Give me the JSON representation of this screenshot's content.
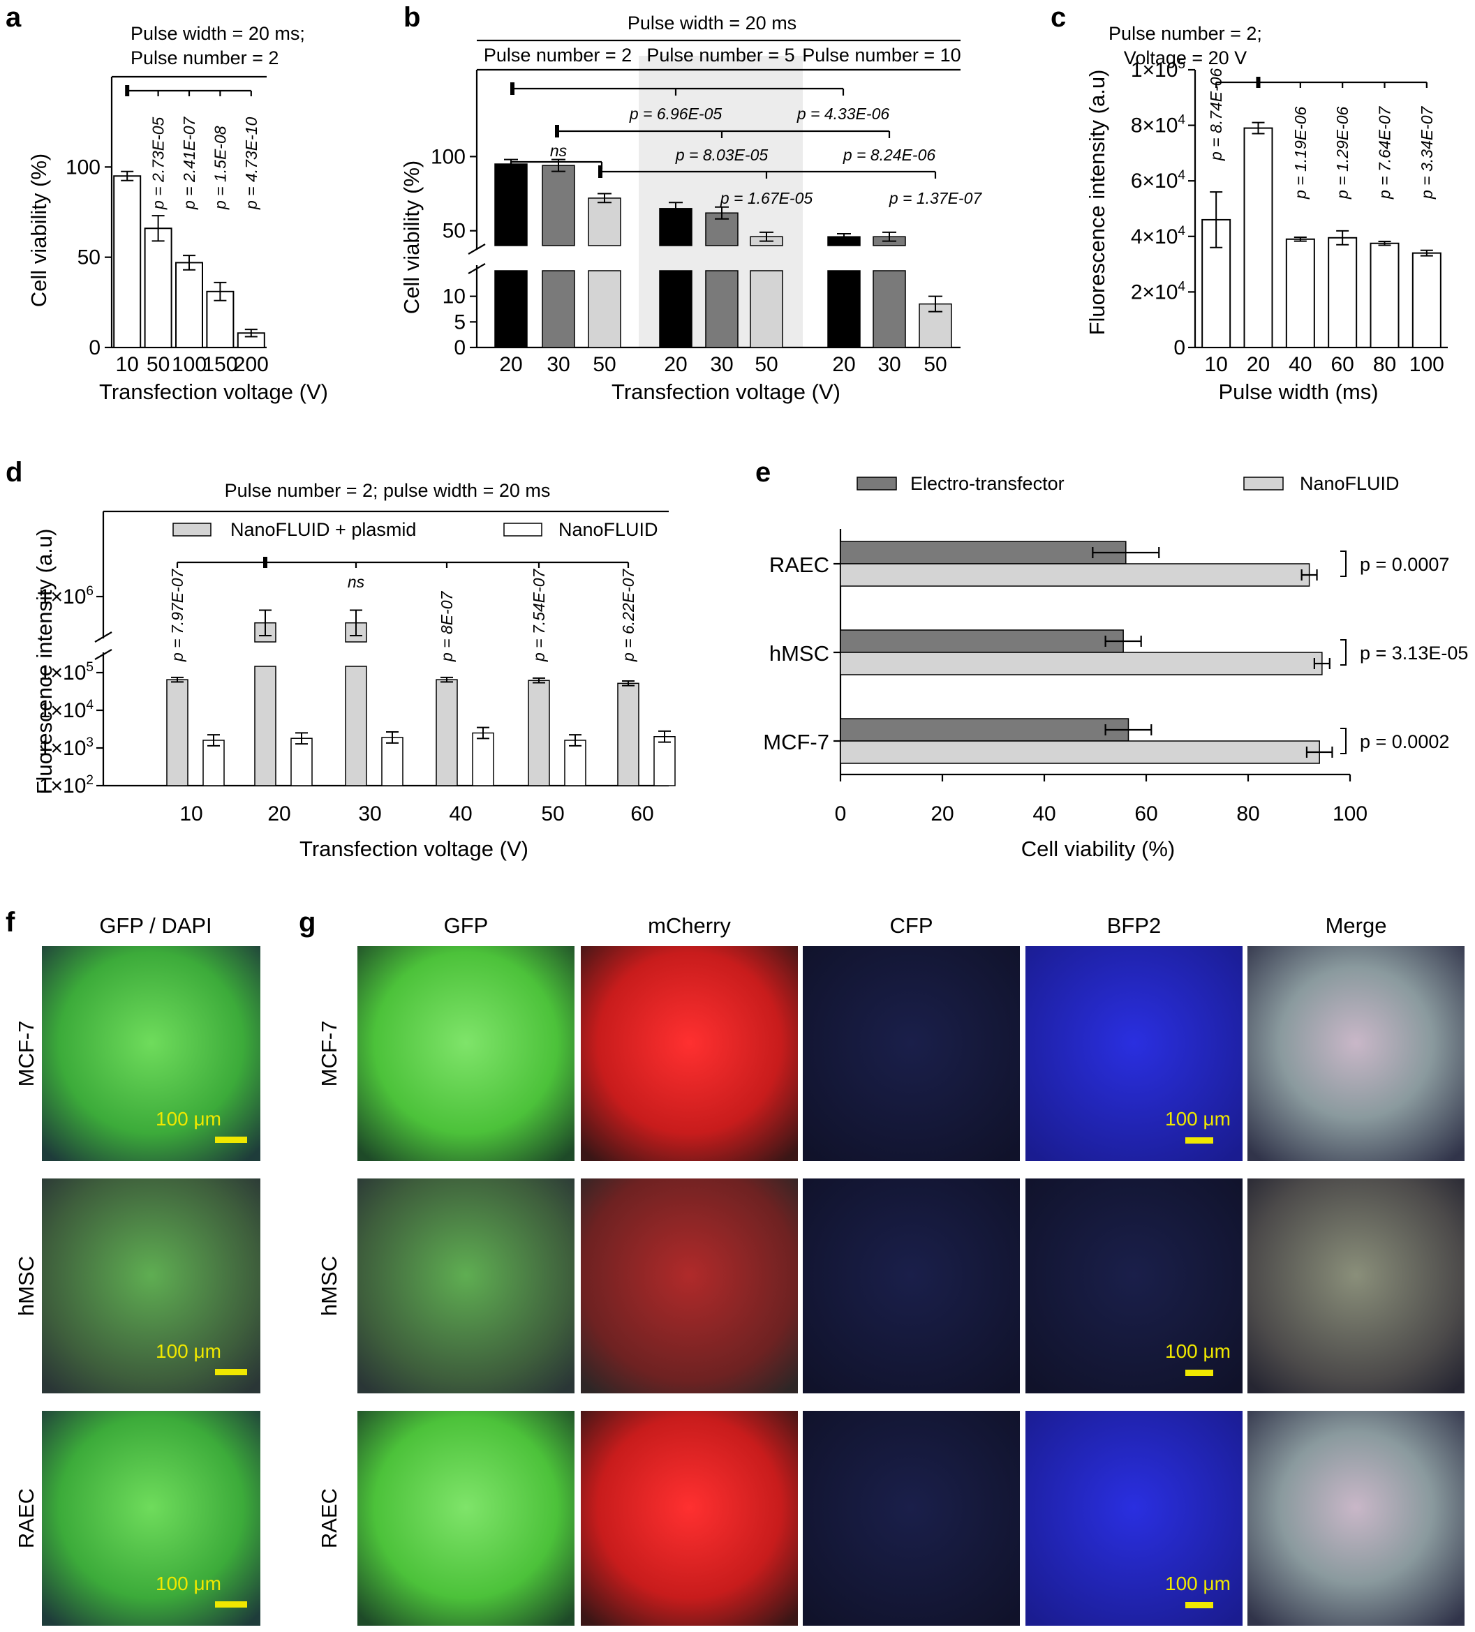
{
  "panels": {
    "a": {
      "label": "a"
    },
    "b": {
      "label": "b"
    },
    "c": {
      "label": "c"
    },
    "d": {
      "label": "d"
    },
    "e": {
      "label": "e"
    },
    "f": {
      "label": "f"
    },
    "g": {
      "label": "g"
    }
  },
  "colors": {
    "black": "#000000",
    "dark_gray": "#7a7a7a",
    "light_gray": "#d4d4d4",
    "white": "#ffffff",
    "shade": "#ececec",
    "scale_bar": "#f0e800"
  },
  "chart_data": [
    {
      "id": "a",
      "type": "bar",
      "conditions": [
        "Pulse width = 20 ms;",
        "Pulse number = 2"
      ],
      "categories": [
        "10",
        "50",
        "100",
        "150",
        "200"
      ],
      "values": [
        95,
        66,
        47,
        31,
        8
      ],
      "errors": [
        2.5,
        7,
        4,
        5,
        2
      ],
      "ylim": [
        0,
        150
      ],
      "yticks": [
        "0",
        "50",
        "100"
      ],
      "xlabel": "Transfection voltage (V)",
      "ylabel": "Cell viability (%)",
      "pvalues": [
        "p = 2.73E-05",
        "p = 2.41E-07",
        "p = 1.5E-08",
        "p = 4.73E-10"
      ]
    },
    {
      "id": "b",
      "type": "bar",
      "broken_axis": true,
      "title": "Pulse width = 20 ms",
      "groups": [
        "Pulse number = 2",
        "Pulse number = 5",
        "Pulse number = 10"
      ],
      "categories": [
        "20",
        "30",
        "50",
        "20",
        "30",
        "50",
        "20",
        "30",
        "50"
      ],
      "values": [
        95,
        94,
        72,
        65,
        62,
        46,
        46,
        46,
        8.5
      ],
      "errors": [
        3,
        4,
        3,
        4,
        4,
        3,
        2,
        3,
        1.5
      ],
      "ylim_lower": [
        0,
        15
      ],
      "ylim_upper": [
        40,
        150
      ],
      "yticks": [
        "0",
        "5",
        "10",
        "50",
        "100"
      ],
      "xlabel": "Transfection voltage (V)",
      "ylabel": "Cell viability (%)",
      "annotations": [
        "ns",
        "p = 6.96E-05",
        "p = 4.33E-06",
        "p = 8.03E-05",
        "p = 8.24E-06",
        "p = 1.67E-05",
        "p = 1.37E-07"
      ]
    },
    {
      "id": "c",
      "type": "bar",
      "conditions": [
        "Pulse number = 2;",
        "Voltage = 20 V"
      ],
      "categories": [
        "10",
        "20",
        "40",
        "60",
        "80",
        "100"
      ],
      "values": [
        46000,
        79000,
        39000,
        39500,
        37500,
        34000
      ],
      "errors": [
        10000,
        2000,
        700,
        2500,
        700,
        1000
      ],
      "ylim": [
        0,
        100000
      ],
      "yticks": [
        {
          "base": "0",
          "exp": ""
        },
        {
          "base": "2×10",
          "exp": "4"
        },
        {
          "base": "4×10",
          "exp": "4"
        },
        {
          "base": "6×10",
          "exp": "4"
        },
        {
          "base": "8×10",
          "exp": "4"
        },
        {
          "base": "1×10",
          "exp": "5"
        }
      ],
      "xlabel": "Pulse width (ms)",
      "ylabel": "Fluorescence intensity (a.u)",
      "pvalues": [
        "p = 8.74E-06",
        "p = 1.19E-06",
        "p = 1.29E-06",
        "p = 7.64E-07",
        "p = 3.34E-07"
      ]
    },
    {
      "id": "d",
      "type": "bar",
      "log_scale": true,
      "broken_axis": true,
      "conditions": "Pulse number = 2; pulse width = 20 ms",
      "categories": [
        "10",
        "20",
        "30",
        "40",
        "50",
        "60"
      ],
      "series": [
        {
          "name": "NanoFLUID + plasmid",
          "values": [
            65000,
            600000,
            600000,
            65000,
            62000,
            52000
          ]
        },
        {
          "name": "NanoFLUID",
          "values": [
            1600,
            1800,
            1900,
            2500,
            1600,
            2000
          ]
        }
      ],
      "yticks": [
        {
          "base": "1×10",
          "exp": "2"
        },
        {
          "base": "1×10",
          "exp": "3"
        },
        {
          "base": "1×10",
          "exp": "4"
        },
        {
          "base": "1×10",
          "exp": "5"
        },
        {
          "base": "1×10",
          "exp": "6"
        }
      ],
      "xlabel": "Transfection voltage (V)",
      "ylabel": "Fluorescence intensity (a.u)",
      "pvalues": [
        "p = 7.97E-07",
        "ns",
        "p = 8E-07",
        "p = 7.54E-07",
        "p = 6.22E-07"
      ]
    },
    {
      "id": "e",
      "type": "bar",
      "orientation": "horizontal",
      "categories": [
        "RAEC",
        "hMSC",
        "MCF-7"
      ],
      "series": [
        {
          "name": "Electro-transfector",
          "values": [
            56,
            55.5,
            56.5
          ],
          "errors": [
            6.5,
            3.5,
            4.5
          ]
        },
        {
          "name": "NanoFLUID",
          "values": [
            92,
            94.5,
            94
          ],
          "errors": [
            1.5,
            1.5,
            2.5
          ]
        }
      ],
      "xlim": [
        0,
        100
      ],
      "xticks": [
        "0",
        "20",
        "40",
        "60",
        "80",
        "100"
      ],
      "xlabel": "Cell viability (%)",
      "pvalues": [
        "p = 0.0007",
        "p = 3.13E-05",
        "p = 0.0002"
      ]
    }
  ],
  "micrographs": {
    "f": {
      "columns": [
        "GFP / DAPI"
      ],
      "rows": [
        "MCF-7",
        "hMSC",
        "RAEC"
      ],
      "scale_label": "100 μm"
    },
    "g": {
      "columns": [
        "GFP",
        "mCherry",
        "CFP",
        "BFP2",
        "Merge"
      ],
      "rows": [
        "MCF-7",
        "hMSC",
        "RAEC"
      ],
      "scale_label": "100 μm"
    }
  }
}
